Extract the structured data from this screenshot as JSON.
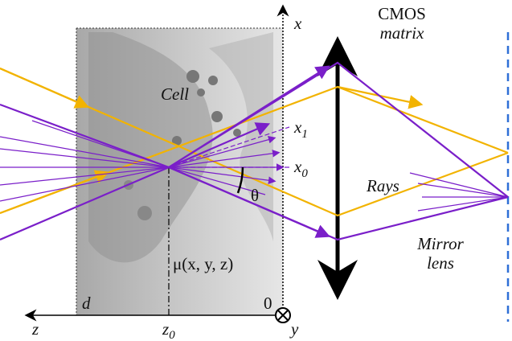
{
  "labels": {
    "cmos": "CMOS",
    "matrix": "matrix",
    "x_axis": "x",
    "cell": "Cell",
    "x1": {
      "base": "x",
      "sub": "1"
    },
    "x0": {
      "base": "x",
      "sub": "0"
    },
    "rays": "Rays",
    "theta": "θ",
    "mirror": "Mirror",
    "lens": "lens",
    "mu": "μ(x, y, z)",
    "d": "d",
    "zero": "0",
    "z_axis": "z",
    "z0": {
      "base": "z",
      "sub": "0"
    },
    "y_axis": "y"
  }
}
